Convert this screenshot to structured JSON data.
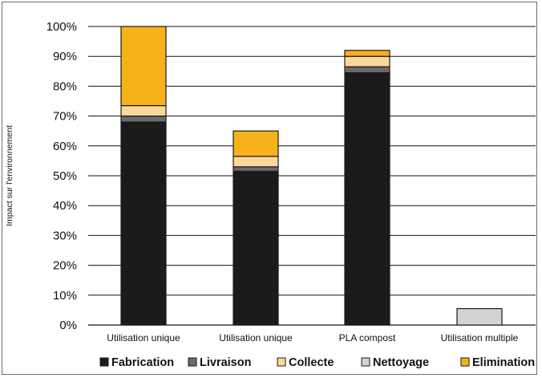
{
  "chart_data": {
    "type": "bar",
    "stacked": true,
    "title": "",
    "xlabel": "",
    "ylabel": "Impact sur l'environnement",
    "ylim": [
      0,
      100
    ],
    "yticks": [
      "0%",
      "10%",
      "20%",
      "30%",
      "40%",
      "50%",
      "60%",
      "70%",
      "80%",
      "90%",
      "100%"
    ],
    "grid": true,
    "legend_position": "bottom",
    "categories": [
      "Utilisation unique",
      "Utilisation unique",
      "PLA compost",
      "Utilisation multiple"
    ],
    "series": [
      {
        "name": "Fabrication",
        "color": "#1c1a1a",
        "values": [
          68,
          51.5,
          84.5,
          0
        ]
      },
      {
        "name": "Livraison",
        "color": "#6b6b6b",
        "values": [
          2,
          1.5,
          2,
          0
        ]
      },
      {
        "name": "Collecte",
        "color": "#fdd79a",
        "values": [
          3.5,
          3.5,
          3.5,
          0
        ]
      },
      {
        "name": "Nettoyage",
        "color": "#d3d3d3",
        "values": [
          0,
          0,
          0,
          5.5
        ]
      },
      {
        "name": "Elimination",
        "color": "#f7b21b",
        "values": [
          26.5,
          8.5,
          2,
          0
        ]
      }
    ]
  }
}
